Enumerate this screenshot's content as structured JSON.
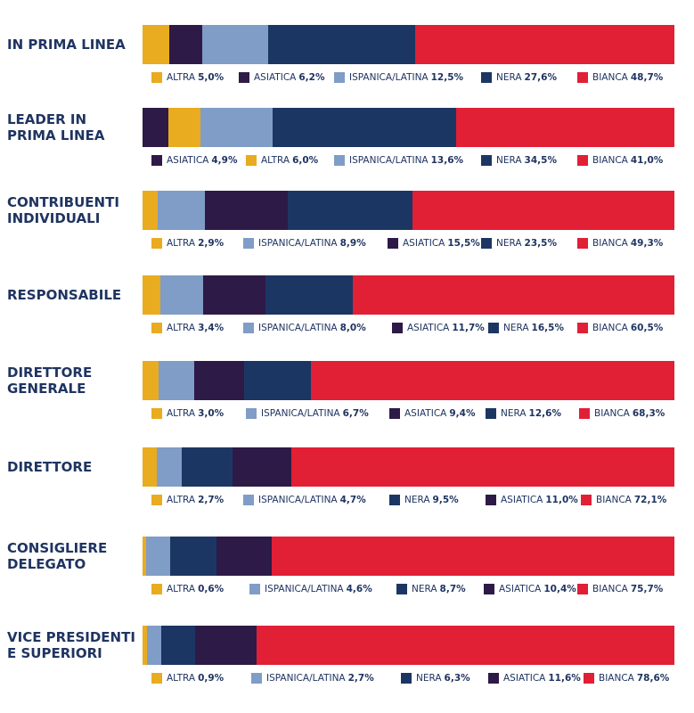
{
  "chart_data": [
    {
      "type": "bar",
      "title": "IN PRIMA LINEA",
      "series": [
        {
          "name": "ALTRA",
          "color": "#e9ab1f",
          "values": [
            5.0
          ],
          "value_labels": [
            "5,0%"
          ]
        },
        {
          "name": "ASIATICA",
          "color": "#2e1a47",
          "values": [
            6.2
          ],
          "value_labels": [
            "6,2%"
          ]
        },
        {
          "name": "ISPANICA/LATINA",
          "color": "#7f9dc6",
          "values": [
            12.5
          ],
          "value_labels": [
            "12,5%"
          ]
        },
        {
          "name": "NERA",
          "color": "#1c3664",
          "values": [
            27.6
          ],
          "value_labels": [
            "27,6%"
          ]
        },
        {
          "name": "BIANCA",
          "color": "#e11f35",
          "values": [
            48.7
          ],
          "value_labels": [
            "48,7%"
          ]
        }
      ]
    },
    {
      "type": "bar",
      "title": "LEADER IN\nPRIMA LINEA",
      "series": [
        {
          "name": "ASIATICA",
          "color": "#2e1a47",
          "values": [
            4.9
          ],
          "value_labels": [
            "4,9%"
          ]
        },
        {
          "name": "ALTRA",
          "color": "#e9ab1f",
          "values": [
            6.0
          ],
          "value_labels": [
            "6,0%"
          ]
        },
        {
          "name": "ISPANICA/LATINA",
          "color": "#7f9dc6",
          "values": [
            13.6
          ],
          "value_labels": [
            "13,6%"
          ]
        },
        {
          "name": "NERA",
          "color": "#1c3664",
          "values": [
            34.5
          ],
          "value_labels": [
            "34,5%"
          ]
        },
        {
          "name": "BIANCA",
          "color": "#e11f35",
          "values": [
            41.0
          ],
          "value_labels": [
            "41,0%"
          ]
        }
      ]
    },
    {
      "type": "bar",
      "title": "CONTRIBUENTI\nINDIVIDUALI",
      "series": [
        {
          "name": "ALTRA",
          "color": "#e9ab1f",
          "values": [
            2.9
          ],
          "value_labels": [
            "2,9%"
          ]
        },
        {
          "name": "ISPANICA/LATINA",
          "color": "#7f9dc6",
          "values": [
            8.9
          ],
          "value_labels": [
            "8,9%"
          ]
        },
        {
          "name": "ASIATICA",
          "color": "#2e1a47",
          "values": [
            15.5
          ],
          "value_labels": [
            "15,5%"
          ]
        },
        {
          "name": "NERA",
          "color": "#1c3664",
          "values": [
            23.5
          ],
          "value_labels": [
            "23,5%"
          ]
        },
        {
          "name": "BIANCA",
          "color": "#e11f35",
          "values": [
            49.3
          ],
          "value_labels": [
            "49,3%"
          ]
        }
      ]
    },
    {
      "type": "bar",
      "title": "RESPONSABILE",
      "series": [
        {
          "name": "ALTRA",
          "color": "#e9ab1f",
          "values": [
            3.4
          ],
          "value_labels": [
            "3,4%"
          ]
        },
        {
          "name": "ISPANICA/LATINA",
          "color": "#7f9dc6",
          "values": [
            8.0
          ],
          "value_labels": [
            "8,0%"
          ]
        },
        {
          "name": "ASIATICA",
          "color": "#2e1a47",
          "values": [
            11.7
          ],
          "value_labels": [
            "11,7%"
          ]
        },
        {
          "name": "NERA",
          "color": "#1c3664",
          "values": [
            16.5
          ],
          "value_labels": [
            "16,5%"
          ]
        },
        {
          "name": "BIANCA",
          "color": "#e11f35",
          "values": [
            60.5
          ],
          "value_labels": [
            "60,5%"
          ]
        }
      ]
    },
    {
      "type": "bar",
      "title": "DIRETTORE\nGENERALE",
      "series": [
        {
          "name": "ALTRA",
          "color": "#e9ab1f",
          "values": [
            3.0
          ],
          "value_labels": [
            "3,0%"
          ]
        },
        {
          "name": "ISPANICA/LATINA",
          "color": "#7f9dc6",
          "values": [
            6.7
          ],
          "value_labels": [
            "6,7%"
          ]
        },
        {
          "name": "ASIATICA",
          "color": "#2e1a47",
          "values": [
            9.4
          ],
          "value_labels": [
            "9,4%"
          ]
        },
        {
          "name": "NERA",
          "color": "#1c3664",
          "values": [
            12.6
          ],
          "value_labels": [
            "12,6%"
          ]
        },
        {
          "name": "BIANCA",
          "color": "#e11f35",
          "values": [
            68.3
          ],
          "value_labels": [
            "68,3%"
          ]
        }
      ]
    },
    {
      "type": "bar",
      "title": "DIRETTORE",
      "series": [
        {
          "name": "ALTRA",
          "color": "#e9ab1f",
          "values": [
            2.7
          ],
          "value_labels": [
            "2,7%"
          ]
        },
        {
          "name": "ISPANICA/LATINA",
          "color": "#7f9dc6",
          "values": [
            4.7
          ],
          "value_labels": [
            "4,7%"
          ]
        },
        {
          "name": "NERA",
          "color": "#1c3664",
          "values": [
            9.5
          ],
          "value_labels": [
            "9,5%"
          ]
        },
        {
          "name": "ASIATICA",
          "color": "#2e1a47",
          "values": [
            11.0
          ],
          "value_labels": [
            "11,0%"
          ]
        },
        {
          "name": "BIANCA",
          "color": "#e11f35",
          "values": [
            72.1
          ],
          "value_labels": [
            "72,1%"
          ]
        }
      ]
    },
    {
      "type": "bar",
      "title": "CONSIGLIERE\nDELEGATO",
      "series": [
        {
          "name": "ALTRA",
          "color": "#e9ab1f",
          "values": [
            0.6
          ],
          "value_labels": [
            "0,6%"
          ]
        },
        {
          "name": "ISPANICA/LATINA",
          "color": "#7f9dc6",
          "values": [
            4.6
          ],
          "value_labels": [
            "4,6%"
          ]
        },
        {
          "name": "NERA",
          "color": "#1c3664",
          "values": [
            8.7
          ],
          "value_labels": [
            "8,7%"
          ]
        },
        {
          "name": "ASIATICA",
          "color": "#2e1a47",
          "values": [
            10.4
          ],
          "value_labels": [
            "10,4%"
          ]
        },
        {
          "name": "BIANCA",
          "color": "#e11f35",
          "values": [
            75.7
          ],
          "value_labels": [
            "75,7%"
          ]
        }
      ]
    },
    {
      "type": "bar",
      "title": "VICE PRESIDENTI\nE SUPERIORI",
      "series": [
        {
          "name": "ALTRA",
          "color": "#e9ab1f",
          "values": [
            0.9
          ],
          "value_labels": [
            "0,9%"
          ]
        },
        {
          "name": "ISPANICA/LATINA",
          "color": "#7f9dc6",
          "values": [
            2.7
          ],
          "value_labels": [
            "2,7%"
          ]
        },
        {
          "name": "NERA",
          "color": "#1c3664",
          "values": [
            6.3
          ],
          "value_labels": [
            "6,3%"
          ]
        },
        {
          "name": "ASIATICA",
          "color": "#2e1a47",
          "values": [
            11.6
          ],
          "value_labels": [
            "11,6%"
          ]
        },
        {
          "name": "BIANCA",
          "color": "#e11f35",
          "values": [
            78.6
          ],
          "value_labels": [
            "78,6%"
          ]
        }
      ]
    }
  ]
}
